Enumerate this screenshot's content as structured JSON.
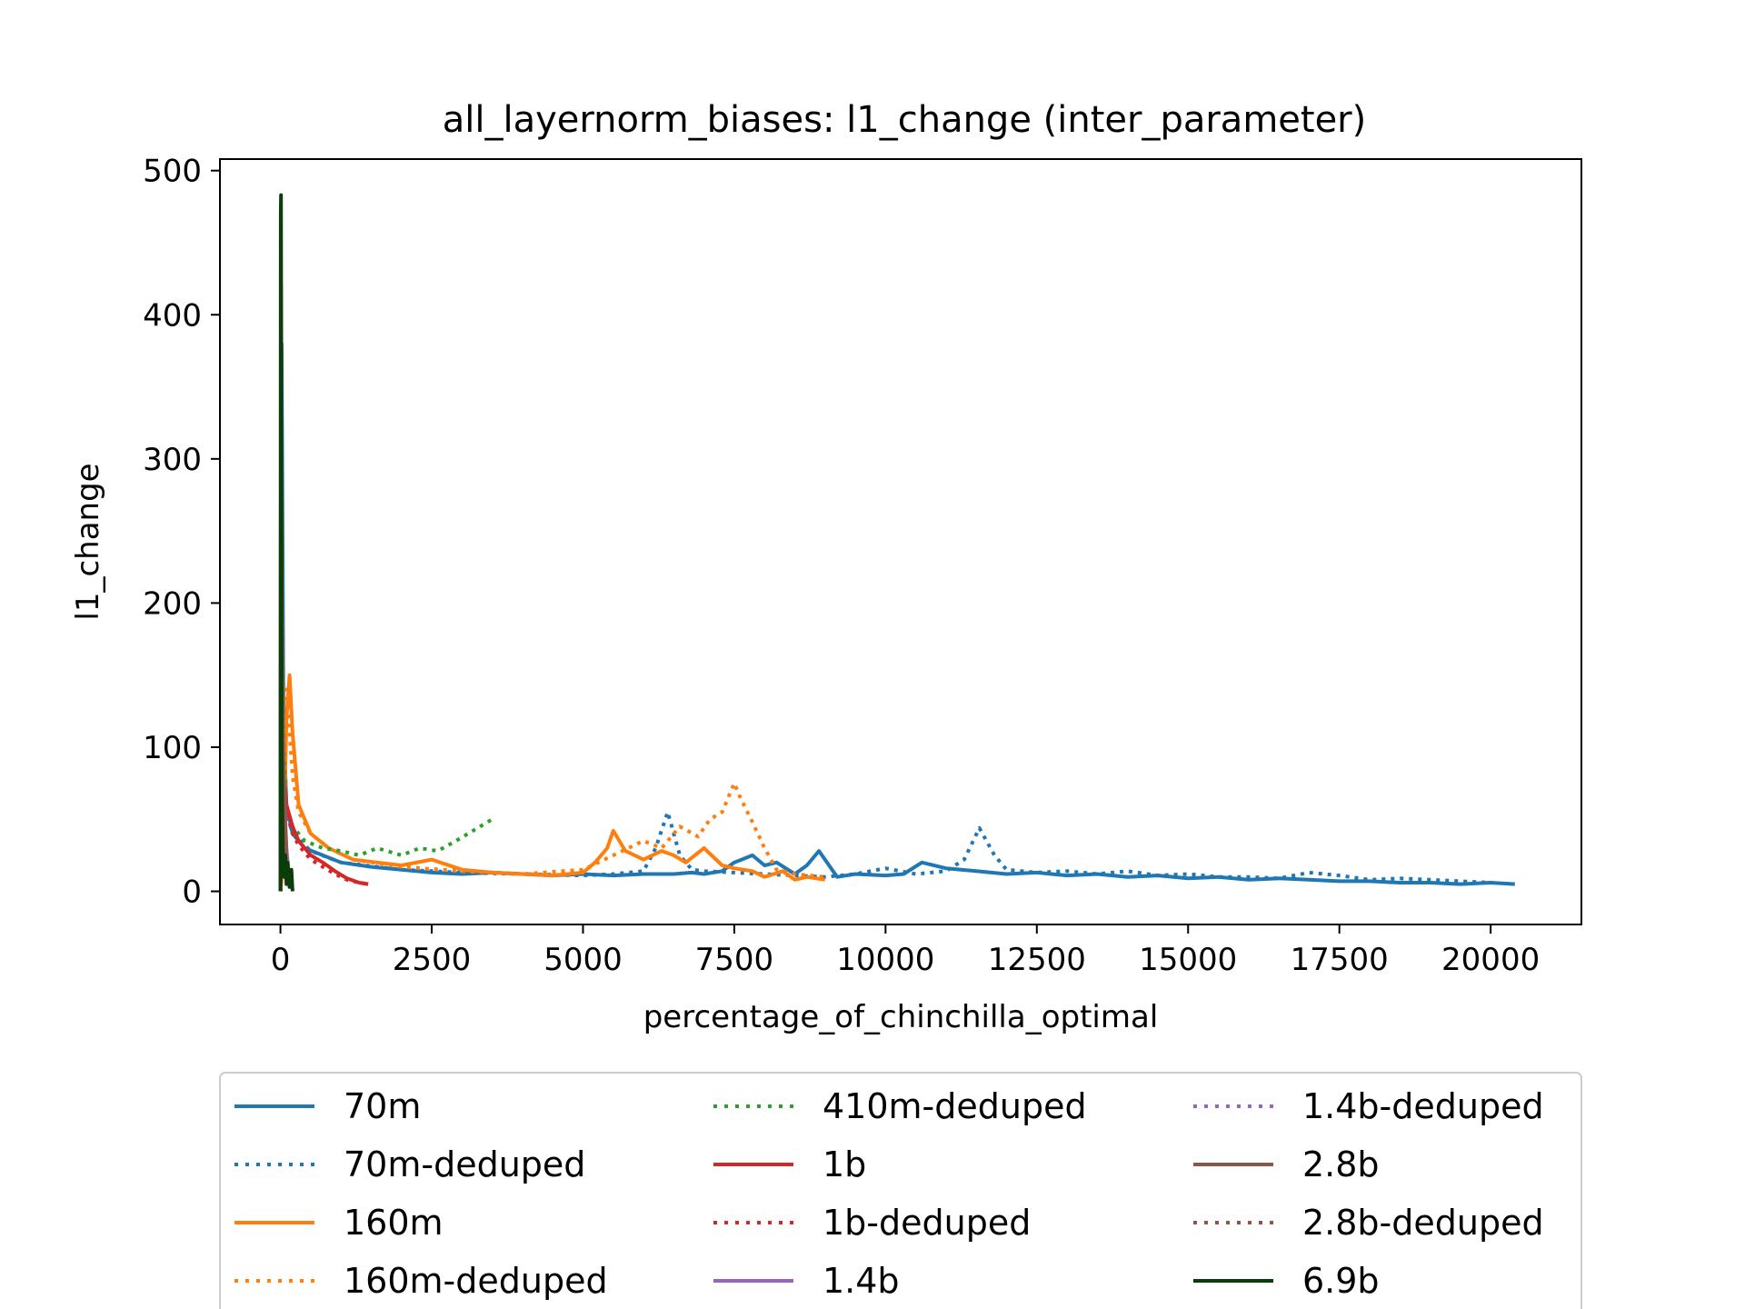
{
  "chart_data": {
    "type": "line",
    "title": "all_layernorm_biases: l1_change (inter_parameter)",
    "xlabel": "percentage_of_chinchilla_optimal",
    "ylabel": "l1_change",
    "xlim": [
      -1000,
      21500
    ],
    "ylim": [
      -23,
      508
    ],
    "xticks": [
      0,
      2500,
      5000,
      7500,
      10000,
      12500,
      15000,
      17500,
      20000
    ],
    "xtick_labels": [
      "0",
      "2500",
      "5000",
      "7500",
      "10000",
      "12500",
      "15000",
      "17500",
      "20000"
    ],
    "yticks": [
      0,
      100,
      200,
      300,
      400,
      500
    ],
    "ytick_labels": [
      "0",
      "100",
      "200",
      "300",
      "400",
      "500"
    ],
    "grid": false,
    "legend": {
      "placement": "below",
      "columns": 3
    },
    "series": [
      {
        "name": "70m",
        "color": "#1f77b4",
        "style": "solid",
        "x": [
          0,
          20,
          50,
          100,
          200,
          400,
          700,
          1000,
          1500,
          2000,
          2500,
          3000,
          3500,
          4000,
          4500,
          5000,
          5500,
          6000,
          6500,
          6800,
          7000,
          7300,
          7500,
          7800,
          8000,
          8200,
          8500,
          8700,
          8900,
          9200,
          9500,
          10000,
          10300,
          10600,
          11000,
          11500,
          12000,
          12500,
          13000,
          13500,
          14000,
          14500,
          15000,
          15500,
          16000,
          16500,
          17000,
          17500,
          18000,
          18500,
          19000,
          19500,
          20000,
          20400
        ],
        "y": [
          0,
          380,
          120,
          60,
          40,
          30,
          25,
          20,
          17,
          15,
          13,
          12,
          13,
          12,
          11,
          12,
          11,
          12,
          12,
          13,
          12,
          14,
          20,
          25,
          18,
          20,
          12,
          18,
          28,
          10,
          12,
          11,
          12,
          20,
          16,
          14,
          12,
          13,
          11,
          12,
          10,
          11,
          9,
          10,
          8,
          9,
          8,
          7,
          7,
          6,
          6,
          5,
          6,
          5
        ]
      },
      {
        "name": "70m-deduped",
        "color": "#1f77b4",
        "style": "dotted",
        "x": [
          0,
          20,
          50,
          100,
          200,
          500,
          1000,
          2000,
          3000,
          4000,
          5000,
          5500,
          6000,
          6200,
          6400,
          6600,
          6800,
          7000,
          7500,
          8000,
          8500,
          9000,
          9500,
          10000,
          10500,
          11000,
          11300,
          11550,
          11800,
          12000,
          12500,
          13000,
          13500,
          14000,
          14500,
          15000,
          15500,
          16000,
          16500,
          17000,
          17500,
          18000,
          18500,
          19000,
          19500,
          20000
        ],
        "y": [
          0,
          300,
          110,
          55,
          40,
          28,
          20,
          15,
          13,
          12,
          11,
          12,
          14,
          30,
          55,
          25,
          15,
          14,
          13,
          12,
          11,
          10,
          12,
          16,
          12,
          14,
          22,
          44,
          25,
          15,
          13,
          14,
          12,
          14,
          11,
          12,
          10,
          10,
          9,
          13,
          11,
          8,
          9,
          8,
          7,
          6
        ]
      },
      {
        "name": "160m",
        "color": "#ff7f0e",
        "style": "solid",
        "x": [
          0,
          50,
          100,
          150,
          200,
          300,
          500,
          800,
          1200,
          1600,
          2000,
          2500,
          3000,
          3500,
          4000,
          4500,
          5000,
          5200,
          5400,
          5500,
          5700,
          6000,
          6300,
          6500,
          6700,
          7000,
          7300,
          7500,
          7800,
          8000,
          8300,
          8500,
          8700,
          9000
        ],
        "y": [
          0,
          20,
          120,
          150,
          110,
          60,
          40,
          30,
          22,
          20,
          18,
          22,
          15,
          13,
          12,
          11,
          13,
          20,
          30,
          42,
          28,
          22,
          28,
          25,
          20,
          30,
          18,
          16,
          14,
          10,
          14,
          8,
          10,
          8
        ]
      },
      {
        "name": "160m-deduped",
        "color": "#ff7f0e",
        "style": "dotted",
        "x": [
          0,
          50,
          100,
          150,
          200,
          300,
          500,
          800,
          1200,
          2000,
          3000,
          4000,
          5000,
          5500,
          6000,
          6300,
          6600,
          6900,
          7100,
          7300,
          7500,
          7600,
          7800,
          8000,
          8200,
          8500,
          9000
        ],
        "y": [
          0,
          30,
          140,
          110,
          80,
          55,
          40,
          30,
          22,
          17,
          14,
          12,
          15,
          25,
          35,
          30,
          45,
          38,
          50,
          55,
          75,
          65,
          48,
          30,
          15,
          12,
          10
        ]
      },
      {
        "name": "410m-deduped",
        "color": "#2ca02c",
        "style": "dotted",
        "x": [
          0,
          20,
          50,
          100,
          200,
          400,
          700,
          1000,
          1300,
          1600,
          2000,
          2300,
          2600,
          2900,
          3100,
          3300,
          3500
        ],
        "y": [
          0,
          250,
          100,
          60,
          45,
          35,
          30,
          28,
          25,
          30,
          25,
          30,
          28,
          35,
          40,
          45,
          50
        ]
      },
      {
        "name": "1b",
        "color": "#d62728",
        "style": "solid",
        "x": [
          0,
          20,
          50,
          100,
          200,
          300,
          500,
          700,
          900,
          1100,
          1300,
          1450
        ],
        "y": [
          0,
          150,
          80,
          60,
          45,
          35,
          25,
          20,
          14,
          9,
          6,
          5
        ]
      },
      {
        "name": "1b-deduped",
        "color": "#d62728",
        "style": "dotted",
        "x": [
          0,
          20,
          50,
          100,
          200,
          300,
          500,
          700,
          900,
          1100,
          1300,
          1450
        ],
        "y": [
          0,
          140,
          75,
          55,
          40,
          32,
          22,
          17,
          12,
          8,
          6,
          5
        ]
      },
      {
        "name": "1.4b",
        "color": "#9467bd",
        "style": "solid",
        "x": [
          0,
          10,
          20,
          40,
          60,
          80,
          100,
          120
        ],
        "y": [
          0,
          350,
          200,
          100,
          70,
          50,
          30,
          20
        ]
      },
      {
        "name": "1.4b-deduped",
        "color": "#9467bd",
        "style": "dotted",
        "x": [
          0,
          10,
          20,
          40,
          60,
          80,
          100,
          120
        ],
        "y": [
          0,
          330,
          190,
          95,
          65,
          48,
          28,
          18
        ]
      },
      {
        "name": "2.8b",
        "color": "#8c564b",
        "style": "solid",
        "x": [
          0,
          10,
          20,
          40,
          60,
          80,
          100
        ],
        "y": [
          0,
          420,
          220,
          110,
          70,
          45,
          25
        ]
      },
      {
        "name": "2.8b-deduped",
        "color": "#8c564b",
        "style": "dotted",
        "x": [
          0,
          10,
          20,
          40,
          60,
          80,
          100
        ],
        "y": [
          0,
          400,
          210,
          100,
          65,
          40,
          22
        ]
      },
      {
        "name": "6.9b",
        "color": "#0b3d0b",
        "style": "solid",
        "x": [
          0,
          5,
          10,
          15,
          20,
          30,
          40,
          60,
          80,
          100,
          120,
          150,
          180,
          200
        ],
        "y": [
          0,
          470,
          483,
          300,
          100,
          60,
          30,
          10,
          25,
          5,
          20,
          3,
          15,
          0
        ]
      }
    ]
  }
}
